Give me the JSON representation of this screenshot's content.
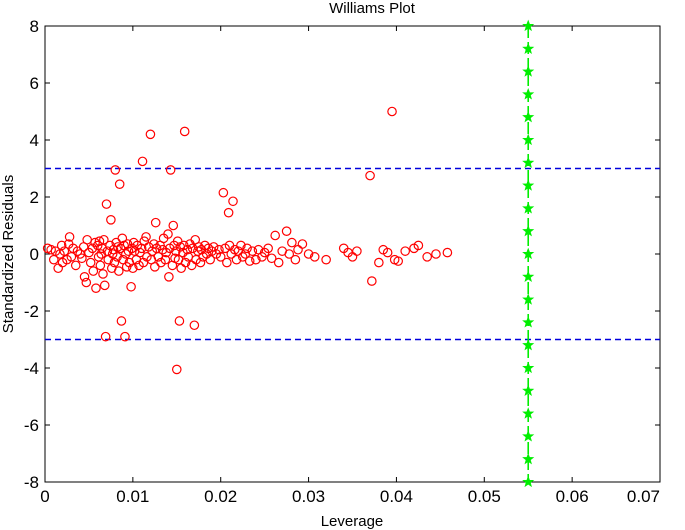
{
  "chart_data": {
    "type": "scatter",
    "title": "Williams Plot",
    "xlabel": "Leverage",
    "ylabel": "Standardized Residuals",
    "xlim": [
      0,
      0.07
    ],
    "ylim": [
      -8,
      8
    ],
    "xticks": [
      0,
      0.01,
      0.02,
      0.03,
      0.04,
      0.05,
      0.06,
      0.07
    ],
    "xtick_labels": [
      "0",
      "0.01",
      "0.02",
      "0.03",
      "0.04",
      "0.05",
      "0.06",
      "0.07"
    ],
    "yticks": [
      -8,
      -6,
      -4,
      -2,
      0,
      2,
      4,
      6,
      8
    ],
    "ytick_labels": [
      "-8",
      "-6",
      "-4",
      "-2",
      "0",
      "2",
      "4",
      "6",
      "8"
    ],
    "colors": {
      "points": "#ff0000",
      "thresholds": "#0000dd",
      "leverage_line": "#00ee00"
    },
    "series": [
      {
        "name": "residuals",
        "marker": "circle",
        "points": [
          [
            0.0003,
            0.2
          ],
          [
            0.0007,
            0.15
          ],
          [
            0.001,
            -0.2
          ],
          [
            0.0012,
            0.1
          ],
          [
            0.0015,
            -0.5
          ],
          [
            0.0017,
            0.0
          ],
          [
            0.0019,
            0.3
          ],
          [
            0.002,
            -0.3
          ],
          [
            0.0022,
            0.1
          ],
          [
            0.0025,
            -0.2
          ],
          [
            0.0027,
            0.35
          ],
          [
            0.0028,
            0.6
          ],
          [
            0.003,
            -0.1
          ],
          [
            0.0032,
            0.2
          ],
          [
            0.0035,
            -0.4
          ],
          [
            0.0037,
            0.1
          ],
          [
            0.004,
            0.0
          ],
          [
            0.0042,
            -0.15
          ],
          [
            0.0044,
            0.25
          ],
          [
            0.0045,
            -0.8
          ],
          [
            0.0047,
            -1.0
          ],
          [
            0.0048,
            0.5
          ],
          [
            0.005,
            0.05
          ],
          [
            0.0052,
            -0.3
          ],
          [
            0.0054,
            0.2
          ],
          [
            0.0055,
            -0.6
          ],
          [
            0.0057,
            0.4
          ],
          [
            0.0058,
            -1.2
          ],
          [
            0.006,
            0.3
          ],
          [
            0.0061,
            -0.1
          ],
          [
            0.0062,
            0.45
          ],
          [
            0.0063,
            -0.4
          ],
          [
            0.0064,
            0.0
          ],
          [
            0.0065,
            0.2
          ],
          [
            0.0066,
            -0.7
          ],
          [
            0.0067,
            0.5
          ],
          [
            0.0068,
            -1.1
          ],
          [
            0.0069,
            -2.9
          ],
          [
            0.007,
            1.75
          ],
          [
            0.0071,
            0.1
          ],
          [
            0.0072,
            -0.2
          ],
          [
            0.0074,
            0.3
          ],
          [
            0.0075,
            1.2
          ],
          [
            0.0076,
            -0.5
          ],
          [
            0.0077,
            0.0
          ],
          [
            0.0078,
            0.15
          ],
          [
            0.0079,
            -0.3
          ],
          [
            0.008,
            2.95
          ],
          [
            0.0081,
            0.4
          ],
          [
            0.0082,
            -0.1
          ],
          [
            0.0083,
            0.25
          ],
          [
            0.0084,
            -0.6
          ],
          [
            0.0085,
            2.45
          ],
          [
            0.0086,
            0.2
          ],
          [
            0.0087,
            -2.35
          ],
          [
            0.0088,
            0.55
          ],
          [
            0.0089,
            -0.2
          ],
          [
            0.009,
            0.3
          ],
          [
            0.0091,
            -2.9
          ],
          [
            0.0092,
            0.0
          ],
          [
            0.0093,
            -0.45
          ],
          [
            0.0094,
            0.35
          ],
          [
            0.0095,
            0.1
          ],
          [
            0.0096,
            -0.3
          ],
          [
            0.0098,
            -1.15
          ],
          [
            0.0099,
            0.2
          ],
          [
            0.01,
            -0.5
          ],
          [
            0.0101,
            0.4
          ],
          [
            0.0102,
            0.1
          ],
          [
            0.0104,
            -0.2
          ],
          [
            0.0105,
            0.3
          ],
          [
            0.0107,
            -0.4
          ],
          [
            0.0108,
            0.05
          ],
          [
            0.011,
            0.2
          ],
          [
            0.0111,
            3.25
          ],
          [
            0.0112,
            -0.3
          ],
          [
            0.0113,
            0.45
          ],
          [
            0.0115,
            0.6
          ],
          [
            0.0116,
            -0.1
          ],
          [
            0.0118,
            0.25
          ],
          [
            0.012,
            4.2
          ],
          [
            0.0121,
            -0.2
          ],
          [
            0.0122,
            0.1
          ],
          [
            0.0124,
            0.35
          ],
          [
            0.0125,
            -0.45
          ],
          [
            0.0126,
            1.1
          ],
          [
            0.0127,
            0.2
          ],
          [
            0.0129,
            -0.1
          ],
          [
            0.0131,
            0.3
          ],
          [
            0.0132,
            -0.3
          ],
          [
            0.0134,
            0.15
          ],
          [
            0.0135,
            0.55
          ],
          [
            0.0137,
            -0.2
          ],
          [
            0.0138,
            0.05
          ],
          [
            0.014,
            0.7
          ],
          [
            0.0141,
            -0.8
          ],
          [
            0.0142,
            0.2
          ],
          [
            0.0143,
            2.95
          ],
          [
            0.0145,
            -0.4
          ],
          [
            0.0146,
            1.0
          ],
          [
            0.0147,
            0.3
          ],
          [
            0.0148,
            -0.15
          ],
          [
            0.0149,
            0.1
          ],
          [
            0.015,
            -4.05
          ],
          [
            0.0151,
            0.45
          ],
          [
            0.0152,
            -0.2
          ],
          [
            0.0153,
            -2.35
          ],
          [
            0.0154,
            0.25
          ],
          [
            0.0155,
            -0.5
          ],
          [
            0.0157,
            0.05
          ],
          [
            0.0158,
            0.3
          ],
          [
            0.0159,
            4.3
          ],
          [
            0.016,
            -0.3
          ],
          [
            0.0162,
            0.15
          ],
          [
            0.0163,
            -0.1
          ],
          [
            0.0165,
            0.35
          ],
          [
            0.0167,
            -0.4
          ],
          [
            0.0168,
            0.2
          ],
          [
            0.017,
            -2.5
          ],
          [
            0.0171,
            0.5
          ],
          [
            0.0172,
            -0.2
          ],
          [
            0.0174,
            0.1
          ],
          [
            0.0175,
            0.25
          ],
          [
            0.0177,
            -0.3
          ],
          [
            0.0178,
            0.15
          ],
          [
            0.018,
            -0.1
          ],
          [
            0.0182,
            0.3
          ],
          [
            0.0184,
            0.0
          ],
          [
            0.0186,
            0.2
          ],
          [
            0.0188,
            -0.2
          ],
          [
            0.019,
            0.1
          ],
          [
            0.0192,
            0.25
          ],
          [
            0.0195,
            0.0
          ],
          [
            0.0198,
            0.15
          ],
          [
            0.02,
            -0.1
          ],
          [
            0.0203,
            2.15
          ],
          [
            0.0205,
            0.2
          ],
          [
            0.0207,
            -0.3
          ],
          [
            0.0209,
            1.45
          ],
          [
            0.021,
            0.3
          ],
          [
            0.0212,
            0.0
          ],
          [
            0.0214,
            1.85
          ],
          [
            0.0216,
            0.15
          ],
          [
            0.0218,
            -0.2
          ],
          [
            0.022,
            0.1
          ],
          [
            0.0223,
            0.3
          ],
          [
            0.0225,
            -0.1
          ],
          [
            0.0228,
            0.0
          ],
          [
            0.023,
            0.2
          ],
          [
            0.0233,
            -0.25
          ],
          [
            0.0236,
            0.1
          ],
          [
            0.024,
            -0.2
          ],
          [
            0.0243,
            0.15
          ],
          [
            0.0247,
            -0.1
          ],
          [
            0.025,
            0.05
          ],
          [
            0.0254,
            0.2
          ],
          [
            0.0258,
            -0.15
          ],
          [
            0.0262,
            0.65
          ],
          [
            0.0266,
            -0.3
          ],
          [
            0.027,
            0.1
          ],
          [
            0.0275,
            0.8
          ],
          [
            0.0278,
            0.0
          ],
          [
            0.0281,
            0.4
          ],
          [
            0.0285,
            -0.2
          ],
          [
            0.0288,
            0.15
          ],
          [
            0.0293,
            0.35
          ],
          [
            0.03,
            0.0
          ],
          [
            0.0307,
            -0.1
          ],
          [
            0.032,
            -0.2
          ],
          [
            0.034,
            0.2
          ],
          [
            0.0345,
            0.05
          ],
          [
            0.035,
            -0.1
          ],
          [
            0.0355,
            0.1
          ],
          [
            0.037,
            2.75
          ],
          [
            0.0372,
            -0.95
          ],
          [
            0.038,
            -0.3
          ],
          [
            0.0385,
            0.15
          ],
          [
            0.039,
            0.05
          ],
          [
            0.0395,
            5.0
          ],
          [
            0.0398,
            -0.2
          ],
          [
            0.0402,
            -0.25
          ],
          [
            0.041,
            0.1
          ],
          [
            0.042,
            0.2
          ],
          [
            0.0425,
            0.3
          ],
          [
            0.0435,
            -0.1
          ],
          [
            0.0445,
            0.0
          ],
          [
            0.0458,
            0.05
          ]
        ]
      }
    ],
    "threshold_lines": [
      {
        "name": "upper-residual-threshold",
        "orientation": "horizontal",
        "y": 3,
        "style": "dashed",
        "color": "#0000dd"
      },
      {
        "name": "lower-residual-threshold",
        "orientation": "horizontal",
        "y": -3,
        "style": "dashed",
        "color": "#0000dd"
      }
    ],
    "leverage_line": {
      "name": "critical-leverage-line",
      "orientation": "vertical",
      "x": 0.055,
      "marker": "star",
      "color": "#00ee00",
      "marker_y": [
        -8,
        -7.2,
        -6.4,
        -5.6,
        -4.8,
        -4,
        -3.2,
        -2.4,
        -1.6,
        -0.8,
        0,
        0.8,
        1.6,
        2.4,
        3.2,
        4,
        4.8,
        5.6,
        6.4,
        7.2,
        8
      ]
    }
  }
}
